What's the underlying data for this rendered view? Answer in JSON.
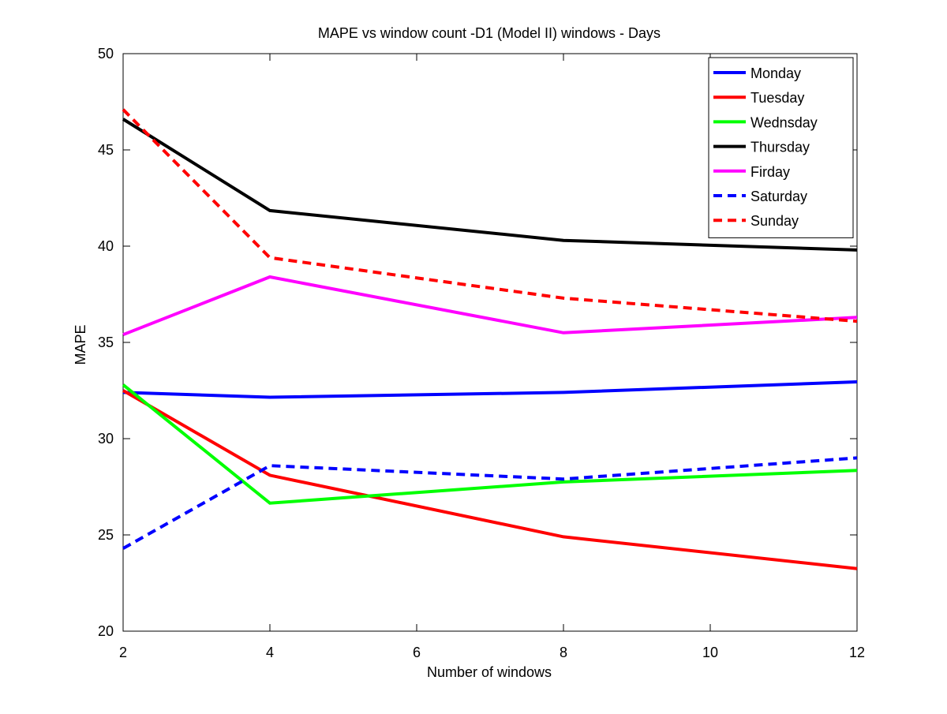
{
  "chart_data": {
    "type": "line",
    "title": "MAPE vs window count -D1 (Model II) windows - Days",
    "xlabel": "Number of windows",
    "ylabel": "MAPE",
    "xlim": [
      2,
      12
    ],
    "ylim": [
      20,
      50
    ],
    "xticks": [
      2,
      4,
      6,
      8,
      10,
      12
    ],
    "yticks": [
      20,
      25,
      30,
      35,
      40,
      45,
      50
    ],
    "grid": false,
    "legend_position": "top-right",
    "x": [
      2,
      4,
      8,
      12
    ],
    "series": [
      {
        "name": "Monday",
        "values": [
          32.4,
          32.15,
          32.4,
          32.95
        ],
        "color": "#0000ff",
        "dashed": false
      },
      {
        "name": "Tuesday",
        "values": [
          32.5,
          28.1,
          24.9,
          23.25
        ],
        "color": "#ff0000",
        "dashed": false
      },
      {
        "name": "Wednsday",
        "values": [
          32.8,
          26.65,
          27.75,
          28.35
        ],
        "color": "#00ff00",
        "dashed": false
      },
      {
        "name": "Thursday",
        "values": [
          46.6,
          41.85,
          40.3,
          39.8
        ],
        "color": "#000000",
        "dashed": false
      },
      {
        "name": "Firday",
        "values": [
          35.4,
          38.4,
          35.5,
          36.3
        ],
        "color": "#ff00ff",
        "dashed": false
      },
      {
        "name": "Saturday",
        "values": [
          24.3,
          28.6,
          27.9,
          29.0
        ],
        "color": "#0000ff",
        "dashed": true
      },
      {
        "name": "Sunday",
        "values": [
          47.1,
          39.4,
          37.3,
          36.1
        ],
        "color": "#ff0000",
        "dashed": true
      }
    ]
  }
}
